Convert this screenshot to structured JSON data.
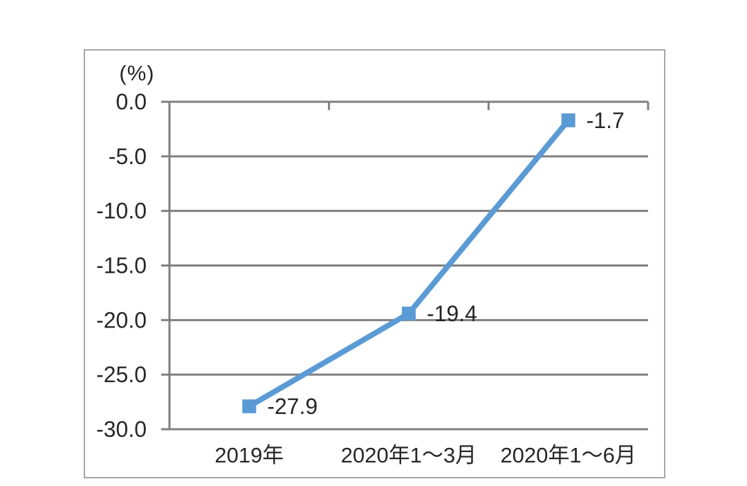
{
  "chart_data": {
    "type": "line",
    "title": "",
    "unit_label": "(%)",
    "categories": [
      "2019年",
      "2020年1～3月",
      "2020年1～6月"
    ],
    "values": [
      -27.9,
      -19.4,
      -1.7
    ],
    "data_labels": [
      "-27.9",
      "-19.4",
      "-1.7"
    ],
    "ytick_labels": [
      "0.0",
      "-5.0",
      "-10.0",
      "-15.0",
      "-20.0",
      "-25.0",
      "-30.0"
    ],
    "ytick_values": [
      0,
      -5,
      -10,
      -15,
      -20,
      -25,
      -30
    ],
    "ylim": [
      -30,
      0
    ],
    "xlabel": "",
    "ylabel": "(%)",
    "grid": true,
    "legend": "none",
    "marker": "square",
    "colors": {
      "series": "#5B9BD5",
      "grid": "#7f7f7f",
      "axis": "#7f7f7f",
      "text": "#262626",
      "border": "#a6a6a6",
      "background": "#ffffff"
    }
  }
}
